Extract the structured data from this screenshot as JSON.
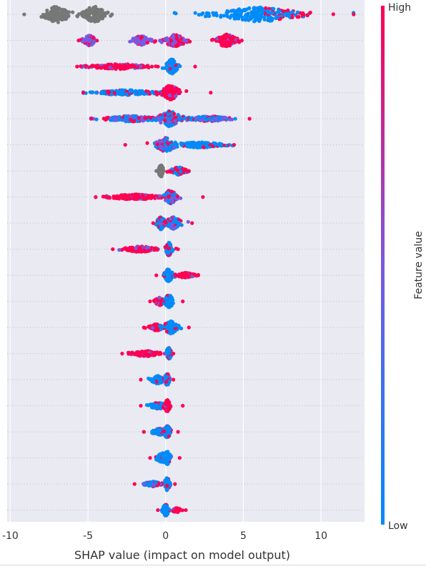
{
  "chart_data": {
    "type": "scatter",
    "title": "",
    "xlabel": "SHAP value (impact on model output)",
    "ylabel": "",
    "xlim": [
      -10.2,
      12.8
    ],
    "x_ticks": [
      -10,
      -5,
      0,
      5,
      10
    ],
    "x_tick_labels": [
      "-10",
      "-5",
      "0",
      "5",
      "10"
    ],
    "grid": true,
    "background": "#eaeaf2",
    "colorbar": {
      "label": "Feature value",
      "high_label": "High",
      "low_label": "Low",
      "colors": [
        "#008bfb",
        "#7a5ae0",
        "#ff0052"
      ]
    },
    "missing_value_color": "#777777",
    "features": [
      {
        "rank": 1,
        "min": -9.1,
        "max": 12.1,
        "clusters": [
          {
            "center": -7.0,
            "spread": 1.0,
            "height": 0.62,
            "color": "missing"
          },
          {
            "center": -4.6,
            "spread": 0.9,
            "height": 0.6,
            "color": "missing"
          },
          {
            "center": 6.0,
            "spread": 3.2,
            "height": 0.55,
            "color": "blue-red"
          }
        ]
      },
      {
        "rank": 2,
        "min": -5.6,
        "max": 4.9,
        "clusters": [
          {
            "center": -4.9,
            "spread": 0.4,
            "height": 0.4,
            "color": "purple"
          },
          {
            "center": -1.6,
            "spread": 0.6,
            "height": 0.35,
            "color": "purple"
          },
          {
            "center": 0.6,
            "spread": 0.9,
            "height": 0.45,
            "color": "red-purple"
          },
          {
            "center": 3.9,
            "spread": 0.7,
            "height": 0.5,
            "color": "red"
          }
        ]
      },
      {
        "rank": 3,
        "min": -5.7,
        "max": 1.9,
        "clusters": [
          {
            "center": -3.0,
            "spread": 2.2,
            "height": 0.2,
            "color": "red"
          },
          {
            "center": 0.4,
            "spread": 0.4,
            "height": 0.55,
            "color": "blue"
          }
        ]
      },
      {
        "rank": 4,
        "min": -5.3,
        "max": 2.9,
        "clusters": [
          {
            "center": -2.5,
            "spread": 2.2,
            "height": 0.2,
            "color": "blue"
          },
          {
            "center": 0.3,
            "spread": 0.7,
            "height": 0.55,
            "color": "red"
          }
        ]
      },
      {
        "rank": 5,
        "min": -4.8,
        "max": 5.4,
        "clusters": [
          {
            "center": -2.2,
            "spread": 2.0,
            "height": 0.22,
            "color": "mixed"
          },
          {
            "center": 0.2,
            "spread": 0.9,
            "height": 0.6,
            "color": "mixed"
          },
          {
            "center": 2.8,
            "spread": 1.5,
            "height": 0.2,
            "color": "mixed"
          }
        ]
      },
      {
        "rank": 6,
        "min": -2.6,
        "max": 4.4,
        "clusters": [
          {
            "center": 0.0,
            "spread": 0.7,
            "height": 0.55,
            "color": "mixed"
          },
          {
            "center": 2.2,
            "spread": 1.6,
            "height": 0.22,
            "color": "blue"
          }
        ]
      },
      {
        "rank": 7,
        "min": -0.6,
        "max": 1.5,
        "clusters": [
          {
            "center": -0.3,
            "spread": 0.15,
            "height": 0.45,
            "color": "missing"
          },
          {
            "center": 0.8,
            "spread": 0.5,
            "height": 0.3,
            "color": "red-blue"
          }
        ]
      },
      {
        "rank": 8,
        "min": -4.5,
        "max": 2.4,
        "clusters": [
          {
            "center": -2.0,
            "spread": 2.0,
            "height": 0.2,
            "color": "red"
          },
          {
            "center": 0.3,
            "spread": 0.4,
            "height": 0.55,
            "color": "mixed"
          }
        ]
      },
      {
        "rank": 9,
        "min": -0.8,
        "max": 1.7,
        "clusters": [
          {
            "center": -0.3,
            "spread": 0.3,
            "height": 0.5,
            "color": "blue"
          },
          {
            "center": 0.5,
            "spread": 0.6,
            "height": 0.45,
            "color": "mixed"
          }
        ]
      },
      {
        "rank": 10,
        "min": -3.4,
        "max": 0.8,
        "clusters": [
          {
            "center": -1.6,
            "spread": 1.2,
            "height": 0.22,
            "color": "red"
          },
          {
            "center": 0.2,
            "spread": 0.2,
            "height": 0.5,
            "color": "blue"
          }
        ]
      },
      {
        "rank": 11,
        "min": -0.6,
        "max": 2.1,
        "clusters": [
          {
            "center": 0.2,
            "spread": 0.3,
            "height": 0.5,
            "color": "blue"
          },
          {
            "center": 1.3,
            "spread": 0.6,
            "height": 0.2,
            "color": "red"
          }
        ]
      },
      {
        "rank": 12,
        "min": -1.0,
        "max": 1.1,
        "clusters": [
          {
            "center": -0.4,
            "spread": 0.3,
            "height": 0.3,
            "color": "red"
          },
          {
            "center": 0.2,
            "spread": 0.3,
            "height": 0.5,
            "color": "blue"
          }
        ]
      },
      {
        "rank": 13,
        "min": -1.4,
        "max": 1.5,
        "clusters": [
          {
            "center": -0.6,
            "spread": 0.5,
            "height": 0.25,
            "color": "red"
          },
          {
            "center": 0.3,
            "spread": 0.5,
            "height": 0.5,
            "color": "blue"
          }
        ]
      },
      {
        "rank": 14,
        "min": -2.8,
        "max": 0.5,
        "clusters": [
          {
            "center": -1.3,
            "spread": 1.0,
            "height": 0.22,
            "color": "red"
          },
          {
            "center": 0.2,
            "spread": 0.15,
            "height": 0.45,
            "color": "blue"
          }
        ]
      },
      {
        "rank": 15,
        "min": -1.6,
        "max": 0.5,
        "clusters": [
          {
            "center": -0.5,
            "spread": 0.5,
            "height": 0.3,
            "color": "blue"
          },
          {
            "center": 0.1,
            "spread": 0.2,
            "height": 0.45,
            "color": "mixed"
          }
        ]
      },
      {
        "rank": 16,
        "min": -1.6,
        "max": 1.1,
        "clusters": [
          {
            "center": -0.5,
            "spread": 0.6,
            "height": 0.25,
            "color": "blue"
          },
          {
            "center": 0.1,
            "spread": 0.2,
            "height": 0.45,
            "color": "red"
          }
        ]
      },
      {
        "rank": 17,
        "min": -1.4,
        "max": 0.8,
        "clusters": [
          {
            "center": -0.4,
            "spread": 0.5,
            "height": 0.25,
            "color": "blue"
          },
          {
            "center": 0.1,
            "spread": 0.2,
            "height": 0.5,
            "color": "blue"
          }
        ]
      },
      {
        "rank": 18,
        "min": -1.0,
        "max": 0.9,
        "clusters": [
          {
            "center": -0.2,
            "spread": 0.4,
            "height": 0.4,
            "color": "blue"
          },
          {
            "center": 0.1,
            "spread": 0.2,
            "height": 0.5,
            "color": "blue"
          }
        ]
      },
      {
        "rank": 19,
        "min": -2.0,
        "max": 0.6,
        "clusters": [
          {
            "center": -0.8,
            "spread": 0.6,
            "height": 0.2,
            "color": "mixed"
          },
          {
            "center": 0.1,
            "spread": 0.15,
            "height": 0.5,
            "color": "blue"
          }
        ]
      },
      {
        "rank": 20,
        "min": -0.5,
        "max": 1.3,
        "clusters": [
          {
            "center": 0.0,
            "spread": 0.2,
            "height": 0.45,
            "color": "blue"
          },
          {
            "center": 0.7,
            "spread": 0.3,
            "height": 0.18,
            "color": "red"
          }
        ]
      }
    ]
  }
}
